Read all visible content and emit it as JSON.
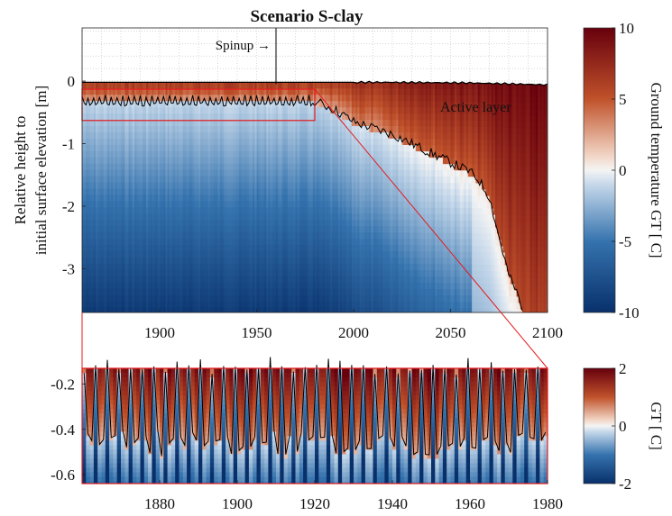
{
  "chart_data": [
    {
      "type": "heatmap",
      "title": "Scenario S-clay",
      "xlabel": "",
      "ylabel": [
        "Relative height to",
        "initial surface elevation [m]"
      ],
      "xlim": [
        1860,
        2100
      ],
      "ylim": [
        -3.7,
        0.85
      ],
      "xticks": [
        "1900",
        "1950",
        "2000",
        "2050",
        "2100"
      ],
      "yticks": [
        "0",
        "-1",
        "-2",
        "-3"
      ],
      "grid": true,
      "colorbar": {
        "label": "Ground temperature GT [ C]",
        "range": [
          -10,
          10
        ],
        "ticks": [
          "10",
          "5",
          "0",
          "-5",
          "-10"
        ]
      },
      "annotations": {
        "spinup_label": "Spinup →",
        "spinup_x": 1960,
        "active_layer_label": "Active layer"
      },
      "zoom_box": {
        "x": [
          1860,
          1980
        ],
        "y": [
          -0.63,
          -0.13
        ]
      },
      "series": [
        {
          "name": "Active layer",
          "active_layer_trend": [
            [
              1860,
              -0.32
            ],
            [
              1980,
              -0.32
            ],
            [
              1990,
              -0.45
            ],
            [
              2000,
              -0.65
            ],
            [
              2010,
              -0.75
            ],
            [
              2020,
              -0.85
            ],
            [
              2030,
              -1.0
            ],
            [
              2040,
              -1.15
            ],
            [
              2050,
              -1.3
            ],
            [
              2060,
              -1.45
            ],
            [
              2065,
              -1.6
            ],
            [
              2070,
              -1.85
            ],
            [
              2075,
              -2.5
            ],
            [
              2080,
              -3.1
            ],
            [
              2085,
              -3.45
            ],
            [
              2087,
              -3.7
            ]
          ],
          "surface": [
            [
              1860,
              -0.02
            ],
            [
              1980,
              -0.02
            ],
            [
              2020,
              -0.02
            ],
            [
              2060,
              -0.03
            ],
            [
              2100,
              -0.06
            ]
          ]
        }
      ]
    },
    {
      "type": "heatmap",
      "title": "",
      "xlim": [
        1860,
        1980
      ],
      "ylim": [
        -0.64,
        -0.13
      ],
      "xticks": [
        "1880",
        "1900",
        "1920",
        "1940",
        "1960",
        "1980"
      ],
      "yticks": [
        "-0.2",
        "-0.4",
        "-0.6"
      ],
      "colorbar": {
        "label": "GT [ C]",
        "range": [
          -2,
          2
        ],
        "ticks": [
          "2",
          "0",
          "-2"
        ]
      },
      "series": [
        {
          "name": "Active layer",
          "range": [
            -0.52,
            -0.16
          ],
          "mean": -0.33
        }
      ]
    }
  ],
  "colors": {
    "warm": "#7a1a0a",
    "neutral": "#f2f2f2",
    "cold": "#0b2f5e",
    "zoom_box": "#e41a1c"
  }
}
